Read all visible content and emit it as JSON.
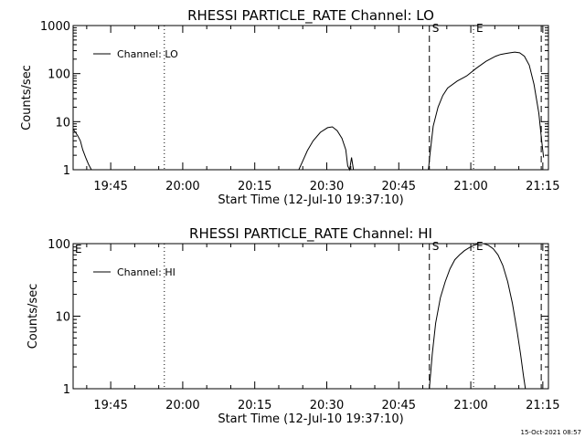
{
  "footer": {
    "timestamp": "15-Oct-2021 08:57"
  },
  "chart_data": [
    {
      "type": "line",
      "title": "RHESSI PARTICLE_RATE Channel: LO",
      "xlabel": "Start Time (12-Jul-10 19:37:10)",
      "ylabel": "Counts/sec",
      "x_unit": "minutes after 19:37:10",
      "xlim": [
        0,
        99
      ],
      "ylim": [
        1,
        1000
      ],
      "yscale": "log",
      "grid": false,
      "legend": {
        "position": "top-left",
        "entries": [
          "Channel: LO"
        ]
      },
      "x_ticks": [
        {
          "label": "19:45",
          "value": 7.83
        },
        {
          "label": "20:00",
          "value": 22.83
        },
        {
          "label": "20:15",
          "value": 37.83
        },
        {
          "label": "20:30",
          "value": 52.83
        },
        {
          "label": "20:45",
          "value": 67.83
        },
        {
          "label": "21:00",
          "value": 82.83
        },
        {
          "label": "21:15",
          "value": 97.83
        }
      ],
      "y_ticks": [
        {
          "label": "1",
          "value": 1
        },
        {
          "label": "10",
          "value": 10
        },
        {
          "label": "100",
          "value": 100
        },
        {
          "label": "1000",
          "value": 1000
        }
      ],
      "markers": [
        {
          "label": "",
          "x": 19.0,
          "style": "dotted"
        },
        {
          "label": "S",
          "x": 74.2,
          "style": "dashed"
        },
        {
          "label": "E",
          "x": 83.4,
          "style": "dotted"
        },
        {
          "label": "",
          "x": 97.5,
          "style": "dashed"
        }
      ],
      "series": [
        {
          "name": "Channel: LO",
          "segments": [
            [
              [
                0,
                7
              ],
              [
                0.5,
                6
              ],
              [
                1,
                5
              ],
              [
                1.5,
                4
              ],
              [
                2,
                2.6
              ],
              [
                2.6,
                1.8
              ],
              [
                3.2,
                1.3
              ],
              [
                3.8,
                1
              ]
            ],
            [
              [
                47,
                1
              ],
              [
                47.8,
                1.5
              ],
              [
                48.8,
                2.5
              ],
              [
                50,
                4
              ],
              [
                51.5,
                6
              ],
              [
                53,
                7.5
              ],
              [
                54,
                7.8
              ],
              [
                55,
                6.5
              ],
              [
                56,
                4.5
              ],
              [
                56.8,
                2.6
              ],
              [
                57.2,
                1.2
              ],
              [
                57.6,
                1
              ],
              [
                58,
                1.8
              ],
              [
                58.4,
                1
              ]
            ],
            [
              [
                74,
                1
              ],
              [
                74.3,
                2
              ],
              [
                75,
                8
              ],
              [
                76,
                20
              ],
              [
                77,
                35
              ],
              [
                78,
                50
              ],
              [
                80,
                70
              ],
              [
                82,
                90
              ],
              [
                84,
                130
              ],
              [
                86,
                180
              ],
              [
                88,
                230
              ],
              [
                89,
                250
              ],
              [
                90,
                260
              ],
              [
                91,
                270
              ],
              [
                92,
                280
              ],
              [
                93,
                270
              ],
              [
                94,
                230
              ],
              [
                95,
                150
              ],
              [
                96,
                60
              ],
              [
                97,
                15
              ],
              [
                97.6,
                4
              ],
              [
                98,
                1.8
              ]
            ]
          ]
        }
      ]
    },
    {
      "type": "line",
      "title": "RHESSI PARTICLE_RATE Channel: HI",
      "xlabel": "Start Time (12-Jul-10 19:37:10)",
      "ylabel": "Counts/sec",
      "x_unit": "minutes after 19:37:10",
      "xlim": [
        0,
        99
      ],
      "ylim": [
        1,
        100
      ],
      "yscale": "log",
      "grid": false,
      "legend": {
        "position": "top-left",
        "entries": [
          "Channel: HI"
        ]
      },
      "x_ticks": [
        {
          "label": "19:45",
          "value": 7.83
        },
        {
          "label": "20:00",
          "value": 22.83
        },
        {
          "label": "20:15",
          "value": 37.83
        },
        {
          "label": "20:30",
          "value": 52.83
        },
        {
          "label": "20:45",
          "value": 67.83
        },
        {
          "label": "21:00",
          "value": 82.83
        },
        {
          "label": "21:15",
          "value": 97.83
        }
      ],
      "y_ticks": [
        {
          "label": "1",
          "value": 1
        },
        {
          "label": "10",
          "value": 10
        },
        {
          "label": "100",
          "value": 100
        }
      ],
      "corner_label": "E",
      "markers": [
        {
          "label": "",
          "x": 19.0,
          "style": "dotted"
        },
        {
          "label": "S",
          "x": 74.2,
          "style": "dashed"
        },
        {
          "label": "E",
          "x": 83.4,
          "style": "dotted"
        },
        {
          "label": "",
          "x": 97.5,
          "style": "dashed"
        }
      ],
      "series": [
        {
          "name": "Channel: HI",
          "segments": [
            [
              [
                74.2,
                1
              ],
              [
                74.8,
                3
              ],
              [
                75.5,
                8
              ],
              [
                76.5,
                18
              ],
              [
                77.5,
                30
              ],
              [
                78.5,
                45
              ],
              [
                79.5,
                60
              ],
              [
                80.5,
                70
              ],
              [
                81.5,
                80
              ],
              [
                82.5,
                88
              ],
              [
                83.5,
                95
              ],
              [
                84.5,
                100
              ],
              [
                85.5,
                100
              ],
              [
                86.5,
                95
              ],
              [
                87.5,
                85
              ],
              [
                88.5,
                70
              ],
              [
                89.5,
                50
              ],
              [
                90.5,
                30
              ],
              [
                91.5,
                15
              ],
              [
                92.5,
                6
              ],
              [
                93.2,
                3
              ],
              [
                93.8,
                1.5
              ],
              [
                94.2,
                1
              ]
            ]
          ]
        }
      ]
    }
  ]
}
